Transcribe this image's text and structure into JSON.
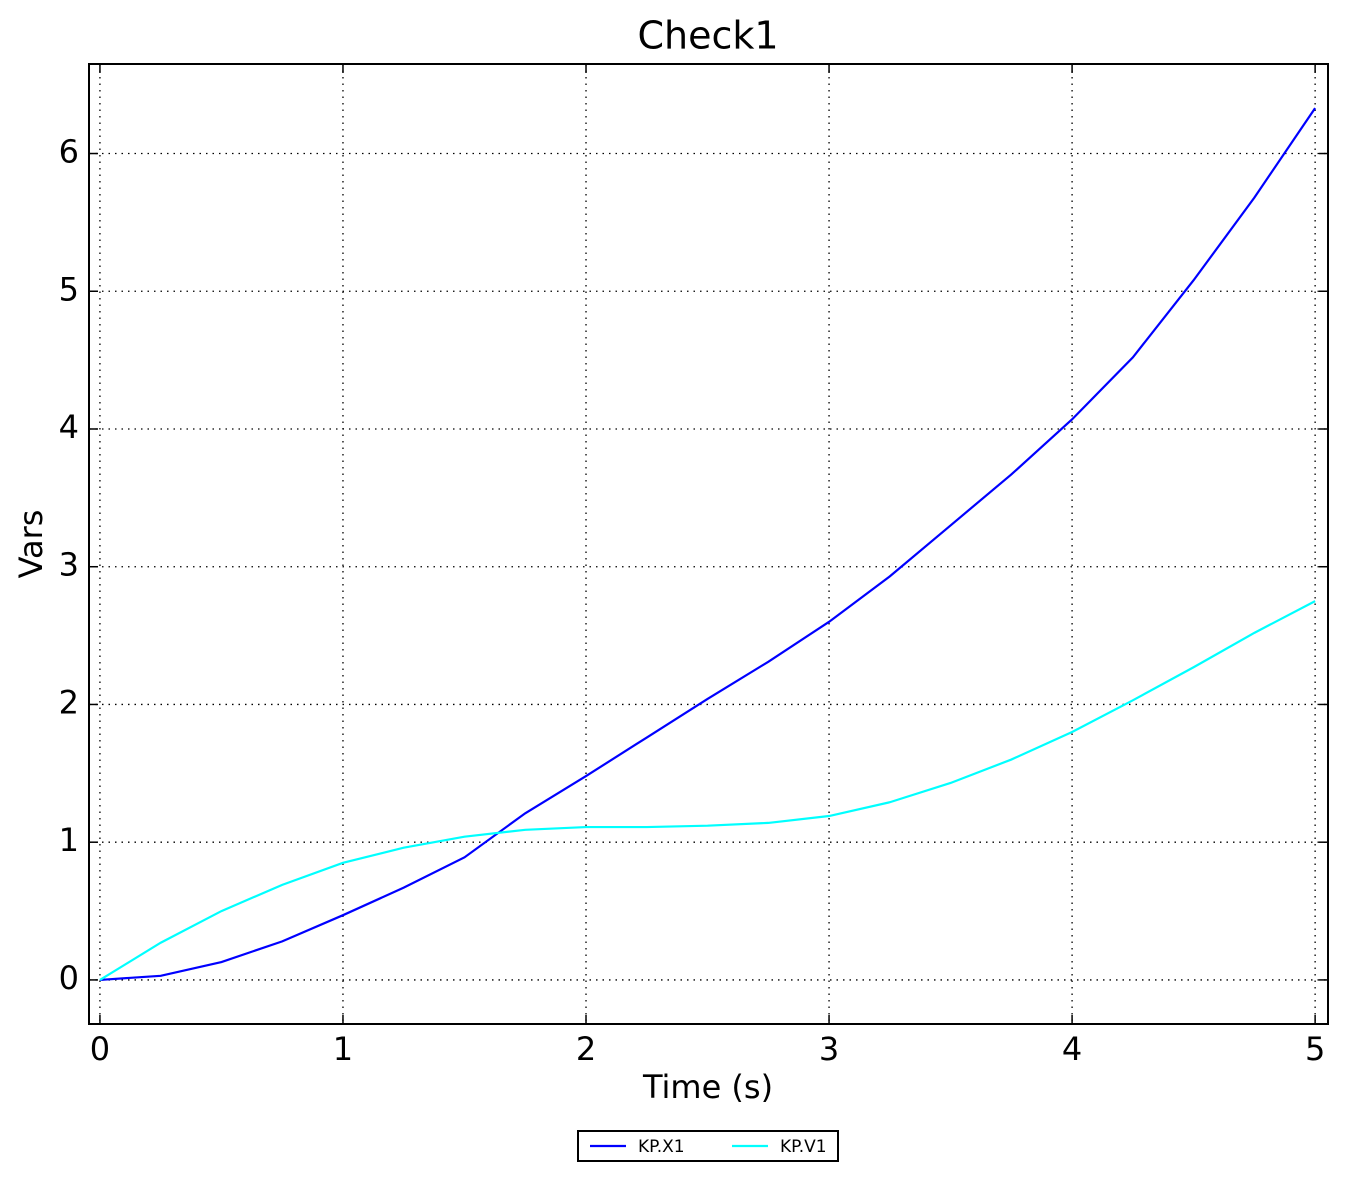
{
  "chart_data": {
    "type": "line",
    "title": "Check1",
    "x_label": "Time (s)",
    "y_label": "Vars",
    "x": [
      0,
      0.25,
      0.5,
      0.75,
      1,
      1.25,
      1.5,
      1.75,
      2,
      2.25,
      2.5,
      2.75,
      3,
      3.25,
      3.5,
      3.75,
      4,
      4.25,
      4.5,
      4.75,
      5
    ],
    "series": [
      {
        "name": "KP.X1",
        "color": "#0000ff",
        "values": [
          0,
          0.03,
          0.13,
          0.28,
          0.47,
          0.67,
          0.89,
          1.21,
          1.48,
          1.76,
          2.04,
          2.31,
          2.6,
          2.93,
          3.3,
          3.67,
          4.07,
          4.52,
          5.08,
          5.68,
          6.33
        ]
      },
      {
        "name": "KP.V1",
        "color": "#00ffff",
        "values": [
          0,
          0.27,
          0.5,
          0.69,
          0.85,
          0.96,
          1.04,
          1.09,
          1.11,
          1.11,
          1.12,
          1.14,
          1.19,
          1.29,
          1.43,
          1.6,
          1.8,
          2.03,
          2.27,
          2.52,
          2.75
        ]
      }
    ],
    "xlim": [
      -0.045,
      5.053
    ],
    "ylim": [
      -0.32,
      6.65
    ],
    "xticks": [
      0,
      1,
      2,
      3,
      4,
      5
    ],
    "yticks": [
      0,
      1,
      2,
      3,
      4,
      5,
      6
    ],
    "grid": true,
    "legend": "bottom"
  }
}
